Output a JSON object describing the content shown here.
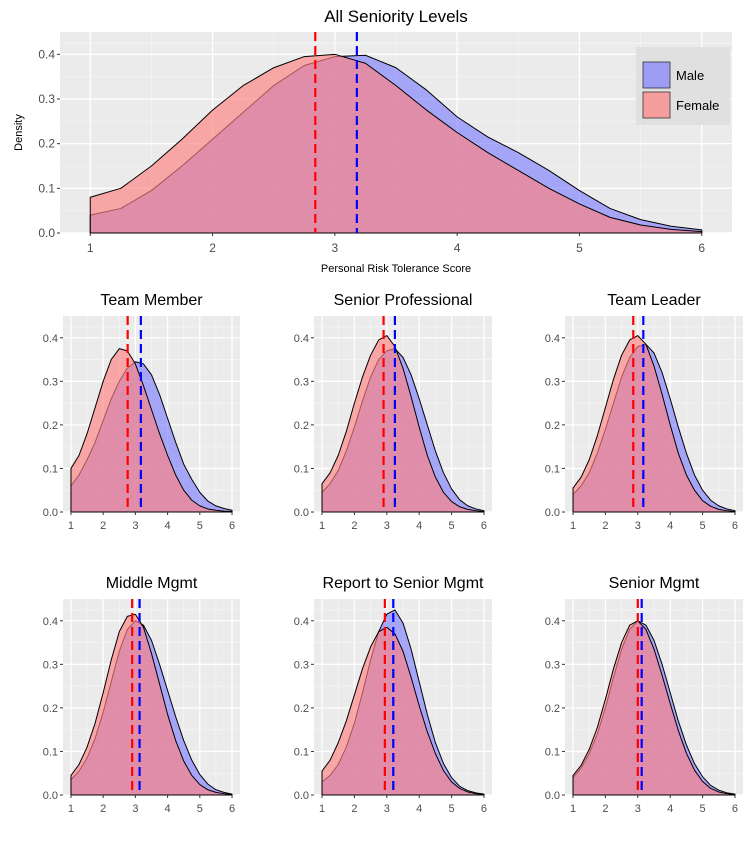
{
  "figure": {
    "colors": {
      "panel_background": "#ebebeb",
      "grid_major": "#ffffff",
      "male_fill": "#8080ff",
      "female_fill": "#ff8080",
      "male_mean_line": "#0000ff",
      "female_mean_line": "#ff0000"
    }
  },
  "chart_data": [
    {
      "type": "area",
      "panel": "main",
      "title": "All Seniority Levels",
      "xlabel": "Personal Risk Tolerance Score",
      "ylabel": "Density",
      "xlim": [
        1,
        6
      ],
      "ylim": [
        0,
        0.45
      ],
      "x_ticks": [
        "1",
        "2",
        "3",
        "4",
        "5",
        "6"
      ],
      "y_ticks": [
        "0.0",
        "0.1",
        "0.2",
        "0.3",
        "0.4"
      ],
      "grid": true,
      "legend": {
        "position": "top-right",
        "entries": [
          {
            "label": "Male",
            "color": "#8080ff"
          },
          {
            "label": "Female",
            "color": "#ff8080"
          }
        ]
      },
      "x": [
        1,
        1.25,
        1.5,
        1.75,
        2,
        2.25,
        2.5,
        2.75,
        3,
        3.25,
        3.5,
        3.75,
        4,
        4.25,
        4.5,
        4.75,
        5,
        5.25,
        5.5,
        5.75,
        6
      ],
      "series": [
        {
          "name": "Male",
          "mean": 3.18,
          "values": [
            0.04,
            0.055,
            0.095,
            0.15,
            0.21,
            0.27,
            0.33,
            0.375,
            0.395,
            0.398,
            0.37,
            0.32,
            0.26,
            0.215,
            0.18,
            0.14,
            0.095,
            0.055,
            0.03,
            0.015,
            0.007
          ]
        },
        {
          "name": "Female",
          "mean": 2.84,
          "values": [
            0.08,
            0.1,
            0.15,
            0.21,
            0.275,
            0.33,
            0.37,
            0.395,
            0.4,
            0.38,
            0.33,
            0.275,
            0.225,
            0.18,
            0.14,
            0.1,
            0.065,
            0.035,
            0.018,
            0.008,
            0.003
          ]
        }
      ]
    },
    {
      "type": "area",
      "panel": "small",
      "title": "Team Member",
      "xlim": [
        1,
        6
      ],
      "ylim": [
        0,
        0.45
      ],
      "x_ticks": [
        "1",
        "2",
        "3",
        "4",
        "5",
        "6"
      ],
      "y_ticks": [
        "0.0",
        "0.1",
        "0.2",
        "0.3",
        "0.4"
      ],
      "x": [
        1,
        1.25,
        1.5,
        1.75,
        2,
        2.25,
        2.5,
        2.75,
        3,
        3.25,
        3.5,
        3.75,
        4,
        4.25,
        4.5,
        4.75,
        5,
        5.25,
        5.5,
        5.75,
        6
      ],
      "series": [
        {
          "name": "Male",
          "mean": 3.17,
          "values": [
            0.06,
            0.085,
            0.12,
            0.16,
            0.21,
            0.26,
            0.3,
            0.33,
            0.345,
            0.34,
            0.315,
            0.27,
            0.215,
            0.16,
            0.11,
            0.075,
            0.045,
            0.025,
            0.014,
            0.008,
            0.004
          ]
        },
        {
          "name": "Female",
          "mean": 2.76,
          "values": [
            0.1,
            0.13,
            0.18,
            0.24,
            0.3,
            0.35,
            0.375,
            0.37,
            0.34,
            0.29,
            0.235,
            0.18,
            0.13,
            0.085,
            0.05,
            0.027,
            0.014,
            0.007,
            0.004,
            0.002,
            0.001
          ]
        }
      ]
    },
    {
      "type": "area",
      "panel": "small",
      "title": "Senior Professional",
      "xlim": [
        1,
        6
      ],
      "ylim": [
        0,
        0.45
      ],
      "x_ticks": [
        "1",
        "2",
        "3",
        "4",
        "5",
        "6"
      ],
      "y_ticks": [
        "0.0",
        "0.1",
        "0.2",
        "0.3",
        "0.4"
      ],
      "x": [
        1,
        1.25,
        1.5,
        1.75,
        2,
        2.25,
        2.5,
        2.75,
        3,
        3.25,
        3.5,
        3.75,
        4,
        4.25,
        4.5,
        4.75,
        5,
        5.25,
        5.5,
        5.75,
        6
      ],
      "series": [
        {
          "name": "Male",
          "mean": 3.25,
          "values": [
            0.045,
            0.065,
            0.095,
            0.14,
            0.195,
            0.255,
            0.31,
            0.35,
            0.37,
            0.375,
            0.355,
            0.315,
            0.26,
            0.2,
            0.14,
            0.09,
            0.053,
            0.028,
            0.014,
            0.007,
            0.003
          ]
        },
        {
          "name": "Female",
          "mean": 2.9,
          "values": [
            0.065,
            0.09,
            0.13,
            0.185,
            0.25,
            0.31,
            0.36,
            0.395,
            0.405,
            0.38,
            0.33,
            0.265,
            0.195,
            0.13,
            0.08,
            0.045,
            0.024,
            0.012,
            0.006,
            0.003,
            0.001
          ]
        }
      ]
    },
    {
      "type": "area",
      "panel": "small",
      "title": "Team Leader",
      "xlim": [
        1,
        6
      ],
      "ylim": [
        0,
        0.45
      ],
      "x_ticks": [
        "1",
        "2",
        "3",
        "4",
        "5",
        "6"
      ],
      "y_ticks": [
        "0.0",
        "0.1",
        "0.2",
        "0.3",
        "0.4"
      ],
      "x": [
        1,
        1.25,
        1.5,
        1.75,
        2,
        2.25,
        2.5,
        2.75,
        3,
        3.25,
        3.5,
        3.75,
        4,
        4.25,
        4.5,
        4.75,
        5,
        5.25,
        5.5,
        5.75,
        6
      ],
      "series": [
        {
          "name": "Male",
          "mean": 3.17,
          "values": [
            0.04,
            0.06,
            0.09,
            0.135,
            0.19,
            0.25,
            0.31,
            0.355,
            0.38,
            0.385,
            0.365,
            0.32,
            0.26,
            0.195,
            0.135,
            0.085,
            0.05,
            0.027,
            0.014,
            0.007,
            0.003
          ]
        },
        {
          "name": "Female",
          "mean": 2.86,
          "values": [
            0.055,
            0.08,
            0.12,
            0.175,
            0.24,
            0.305,
            0.36,
            0.395,
            0.405,
            0.385,
            0.335,
            0.27,
            0.2,
            0.135,
            0.085,
            0.05,
            0.026,
            0.013,
            0.006,
            0.003,
            0.001
          ]
        }
      ]
    },
    {
      "type": "area",
      "panel": "small",
      "title": "Middle Mgmt",
      "xlim": [
        1,
        6
      ],
      "ylim": [
        0,
        0.45
      ],
      "x_ticks": [
        "1",
        "2",
        "3",
        "4",
        "5",
        "6"
      ],
      "y_ticks": [
        "0.0",
        "0.1",
        "0.2",
        "0.3",
        "0.4"
      ],
      "x": [
        1,
        1.25,
        1.5,
        1.75,
        2,
        2.25,
        2.5,
        2.75,
        3,
        3.25,
        3.5,
        3.75,
        4,
        4.25,
        4.5,
        4.75,
        5,
        5.25,
        5.5,
        5.75,
        6
      ],
      "series": [
        {
          "name": "Male",
          "mean": 3.13,
          "values": [
            0.035,
            0.055,
            0.085,
            0.13,
            0.19,
            0.26,
            0.33,
            0.38,
            0.4,
            0.39,
            0.355,
            0.3,
            0.24,
            0.18,
            0.125,
            0.08,
            0.047,
            0.025,
            0.012,
            0.006,
            0.002
          ]
        },
        {
          "name": "Female",
          "mean": 2.9,
          "values": [
            0.045,
            0.07,
            0.11,
            0.165,
            0.235,
            0.31,
            0.375,
            0.41,
            0.415,
            0.385,
            0.325,
            0.255,
            0.185,
            0.125,
            0.078,
            0.045,
            0.024,
            0.012,
            0.006,
            0.003,
            0.001
          ]
        }
      ]
    },
    {
      "type": "area",
      "panel": "small",
      "title": "Report to Senior Mgmt",
      "xlim": [
        1,
        6
      ],
      "ylim": [
        0,
        0.45
      ],
      "x_ticks": [
        "1",
        "2",
        "3",
        "4",
        "5",
        "6"
      ],
      "y_ticks": [
        "0.0",
        "0.1",
        "0.2",
        "0.3",
        "0.4"
      ],
      "x": [
        1,
        1.25,
        1.5,
        1.75,
        2,
        2.25,
        2.5,
        2.75,
        3,
        3.25,
        3.5,
        3.75,
        4,
        4.25,
        4.5,
        4.75,
        5,
        5.25,
        5.5,
        5.75,
        6
      ],
      "series": [
        {
          "name": "Male",
          "mean": 3.2,
          "values": [
            0.03,
            0.045,
            0.07,
            0.11,
            0.165,
            0.235,
            0.31,
            0.375,
            0.415,
            0.425,
            0.395,
            0.335,
            0.26,
            0.185,
            0.12,
            0.072,
            0.04,
            0.02,
            0.01,
            0.005,
            0.002
          ]
        },
        {
          "name": "Female",
          "mean": 2.94,
          "values": [
            0.055,
            0.08,
            0.12,
            0.17,
            0.23,
            0.29,
            0.34,
            0.375,
            0.385,
            0.37,
            0.33,
            0.27,
            0.205,
            0.145,
            0.095,
            0.056,
            0.03,
            0.015,
            0.007,
            0.003,
            0.001
          ]
        }
      ]
    },
    {
      "type": "area",
      "panel": "small",
      "title": "Senior Mgmt",
      "xlim": [
        1,
        6
      ],
      "ylim": [
        0,
        0.45
      ],
      "x_ticks": [
        "1",
        "2",
        "3",
        "4",
        "5",
        "6"
      ],
      "y_ticks": [
        "0.0",
        "0.1",
        "0.2",
        "0.3",
        "0.4"
      ],
      "x": [
        1,
        1.25,
        1.5,
        1.75,
        2,
        2.25,
        2.5,
        2.75,
        3,
        3.25,
        3.5,
        3.75,
        4,
        4.25,
        4.5,
        4.75,
        5,
        5.25,
        5.5,
        5.75,
        6
      ],
      "series": [
        {
          "name": "Male",
          "mean": 3.12,
          "values": [
            0.04,
            0.062,
            0.095,
            0.14,
            0.2,
            0.27,
            0.335,
            0.38,
            0.4,
            0.39,
            0.355,
            0.3,
            0.235,
            0.17,
            0.115,
            0.072,
            0.042,
            0.022,
            0.011,
            0.005,
            0.002
          ]
        },
        {
          "name": "Female",
          "mean": 3.0,
          "values": [
            0.045,
            0.068,
            0.105,
            0.155,
            0.22,
            0.29,
            0.35,
            0.39,
            0.4,
            0.38,
            0.335,
            0.275,
            0.21,
            0.148,
            0.096,
            0.057,
            0.031,
            0.015,
            0.007,
            0.003,
            0.001
          ]
        }
      ]
    }
  ]
}
